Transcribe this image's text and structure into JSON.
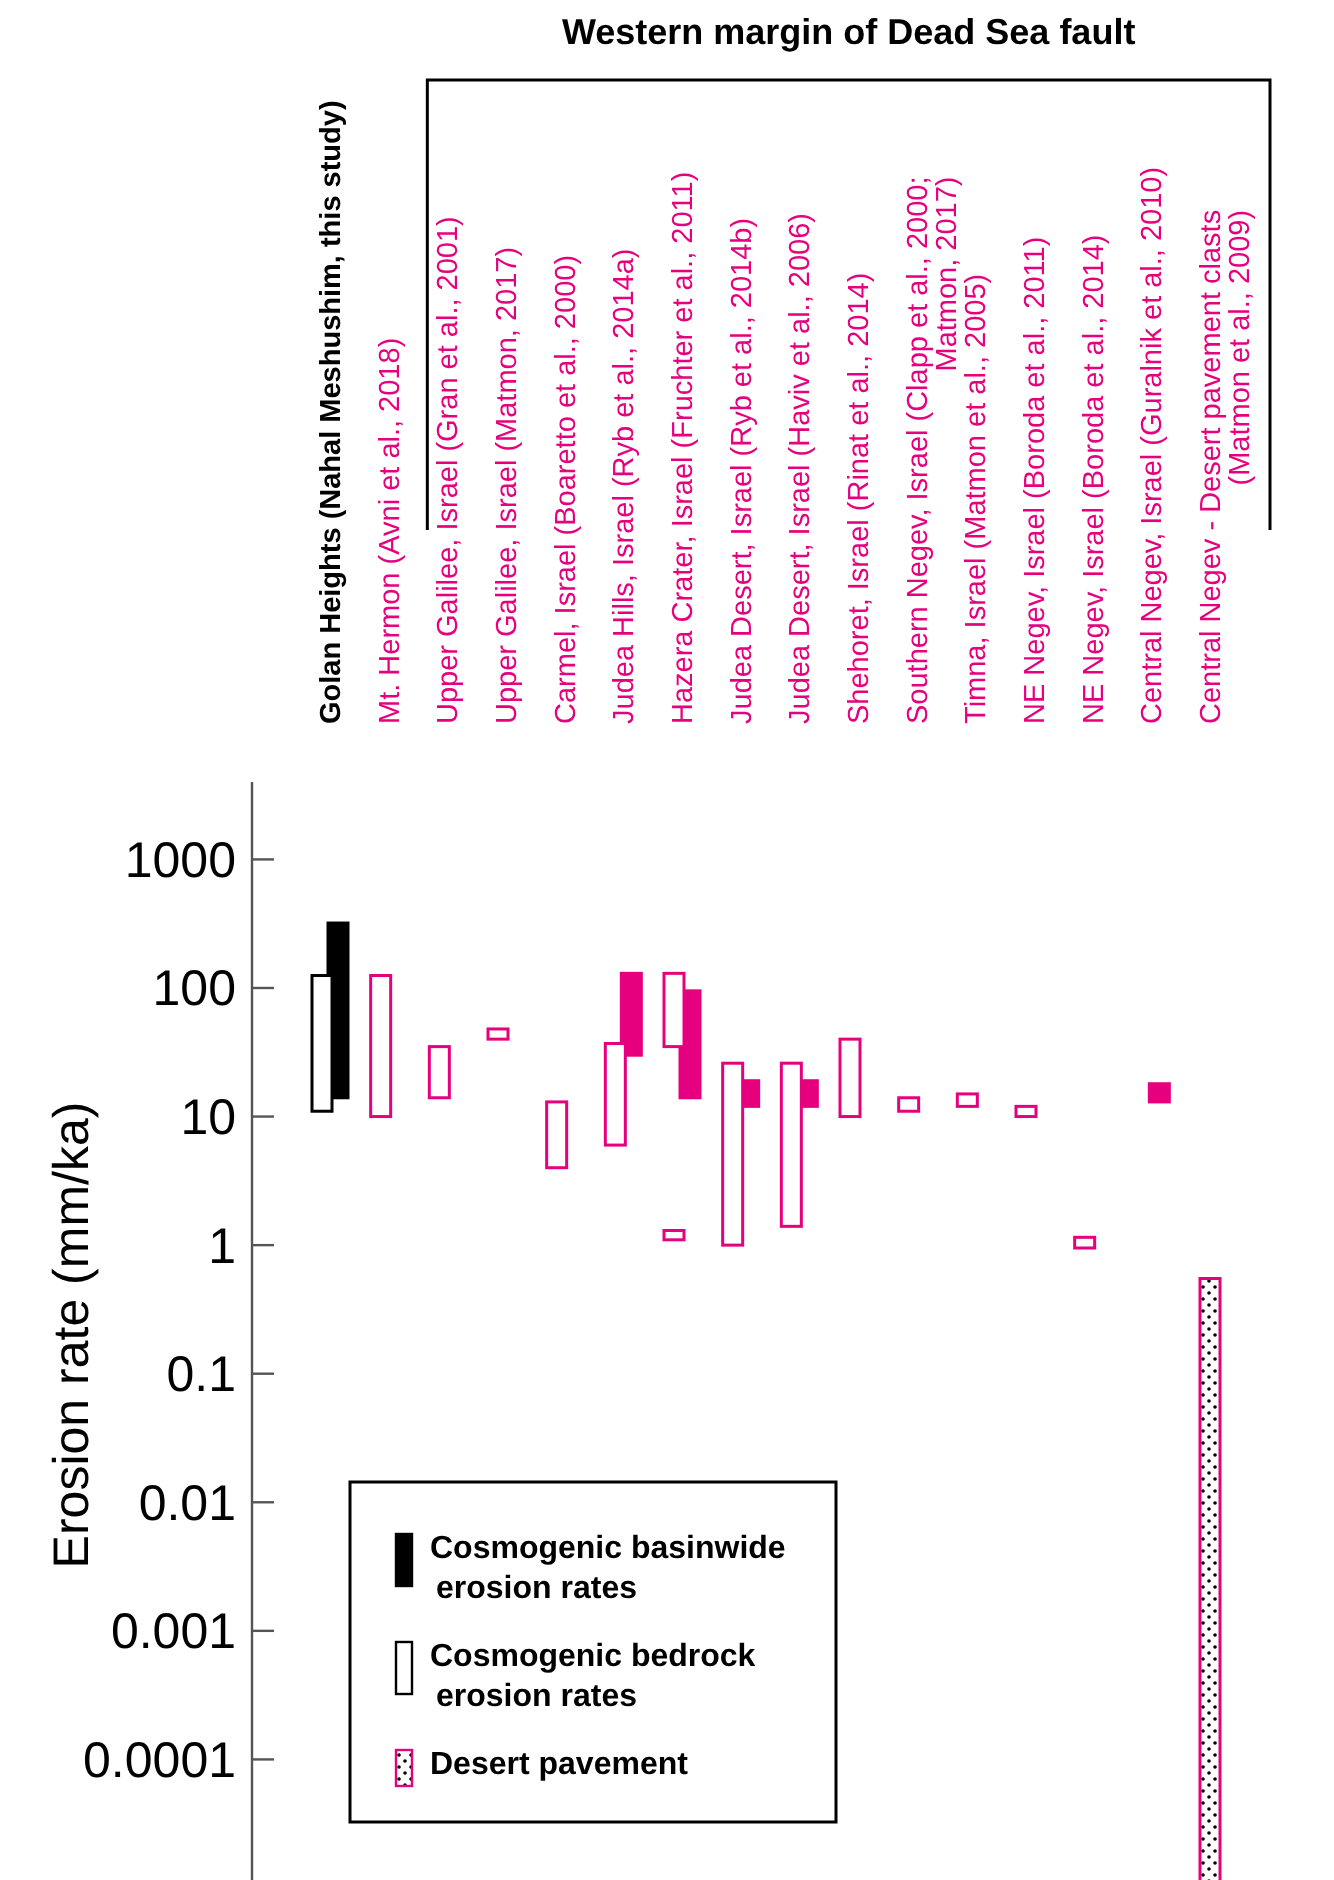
{
  "chart_data": {
    "type": "bar",
    "annotations": [
      "Western margin of Dead Sea fault"
    ],
    "ylabel": "Erosion rate (mm/ka)",
    "categories": [
      "Golan Heights (Nahal Meshushim, this study)",
      "Mt. Hermon (Avni et al., 2018)",
      "Upper Galilee, Israel (Gran et al., 2001)",
      "Upper Galilee, Israel (Matmon, 2017)",
      "Carmel, Israel (Boaretto et al., 2000)",
      "Judea Hills, Israel (Ryb et al., 2014a)",
      "Hazera Crater, Israel (Fruchter et al., 2011)",
      "Judea Desert, Israel (Ryb et al., 2014b)",
      "Judea Desert, Israel (Haviv et al., 2006)",
      "Shehoret, Israel (Rinat et al., 2014)",
      "Southern Negev, Israel (Clapp et al., 2000; Matmon, 2017)",
      "Timna, Israel (Matmon et al., 2005)",
      "NE Negev, Israel (Boroda et al., 2011)",
      "NE Negev, Israel (Boroda et al., 2014)",
      "Central Negev, Israel (Guralnik et al., 2010)",
      "Central Negev - Desert pavement clasts (Matmon et al., 2009)"
    ],
    "series": [
      {
        "name": "Cosmogenic basinwide erosion rates",
        "color": "#000000",
        "colors": [
          "#000000",
          null,
          null,
          null,
          null,
          "#e6007e",
          "#e6007e",
          "#e6007e",
          "#e6007e",
          null,
          null,
          null,
          null,
          null,
          "#e6007e",
          null
        ],
        "base": [
          14,
          null,
          null,
          null,
          null,
          30,
          14,
          12,
          12,
          null,
          null,
          null,
          null,
          null,
          13,
          null
        ],
        "values": [
          306,
          null,
          null,
          null,
          null,
          100,
          81,
          7,
          7,
          null,
          null,
          null,
          null,
          null,
          5,
          null
        ]
      },
      {
        "name": "Cosmogenic bedrock erosion rates",
        "color": "#000000",
        "colors": [
          "#000000",
          "#e6007e",
          "#e6007e",
          "#e6007e",
          "#e6007e",
          "#e6007e",
          "#e6007e",
          "#e6007e",
          "#e6007e",
          "#e6007e",
          "#e6007e",
          "#e6007e",
          "#e6007e",
          "#e6007e",
          null,
          null
        ],
        "base": [
          11,
          10,
          14,
          40,
          4,
          6,
          35,
          1,
          1.4,
          10,
          11,
          12,
          10,
          0.95,
          null,
          null
        ],
        "values": [
          114,
          115,
          21,
          8,
          9,
          31,
          95,
          25,
          24.6,
          30,
          3,
          3,
          2,
          0.2,
          null,
          null
        ]
      },
      {
        "colors": [
          null,
          null,
          null,
          null,
          null,
          null,
          "#e6007e",
          null,
          null,
          null,
          null,
          null,
          null,
          null,
          null,
          null
        ],
        "base": [
          null,
          null,
          null,
          null,
          null,
          null,
          1.1,
          null,
          null,
          null,
          null,
          null,
          null,
          null,
          null,
          null
        ],
        "values": [
          null,
          null,
          null,
          null,
          null,
          null,
          0.2,
          null,
          null,
          null,
          null,
          null,
          null,
          null,
          null,
          null
        ]
      },
      {
        "name": "Desert pavement",
        "color": "#e6007e",
        "colors": [
          null,
          null,
          null,
          null,
          null,
          null,
          null,
          null,
          null,
          null,
          null,
          null,
          null,
          null,
          null,
          "#e6007e"
        ],
        "base": [
          null,
          null,
          null,
          null,
          null,
          null,
          null,
          null,
          null,
          null,
          null,
          null,
          null,
          null,
          null,
          1e-05
        ],
        "values": [
          null,
          null,
          null,
          null,
          null,
          null,
          null,
          null,
          null,
          null,
          null,
          null,
          null,
          null,
          null,
          0.55
        ]
      }
    ],
    "log": true,
    "ylim": [
      1e-05,
      4000
    ],
    "yticks": [
      0.0001,
      0.001,
      0.01,
      0.1,
      1,
      10,
      100,
      1000
    ],
    "grid": false,
    "legend": "bottom left"
  }
}
